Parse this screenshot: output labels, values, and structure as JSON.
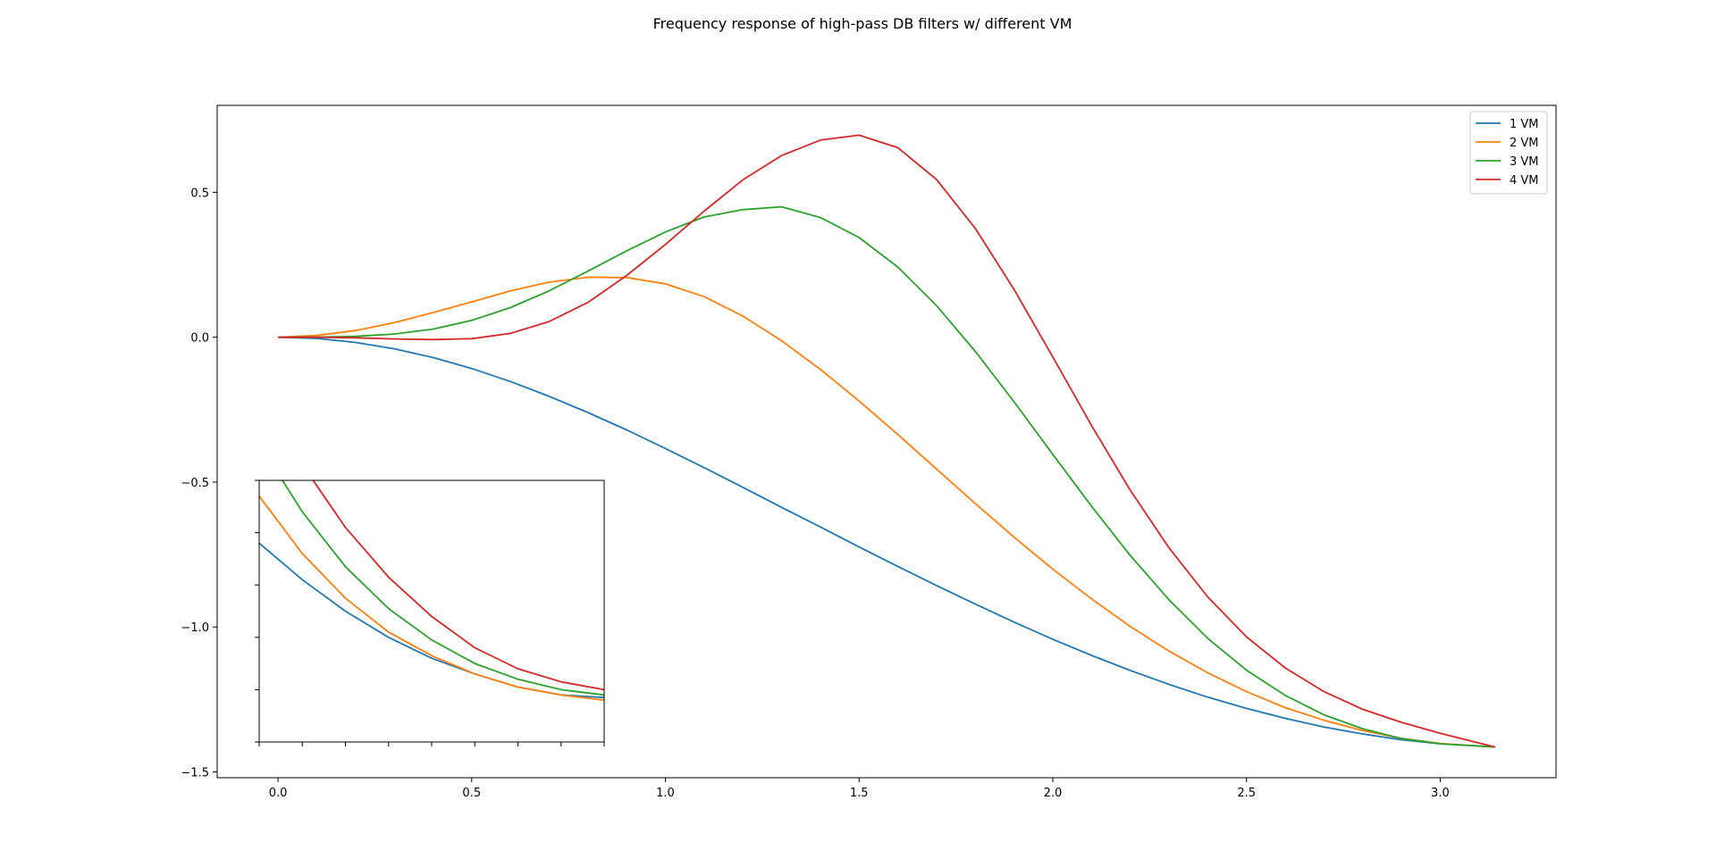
{
  "chart_data": {
    "type": "line",
    "title": "Frequency response of high-pass DB filters w/ different VM",
    "xlabel": "",
    "ylabel": "",
    "xlim": [
      -0.157,
      3.299
    ],
    "ylim": [
      -1.52,
      0.8
    ],
    "xticks": [
      0.0,
      0.5,
      1.0,
      1.5,
      2.0,
      2.5,
      3.0
    ],
    "xtick_labels": [
      "0.0",
      "0.5",
      "1.0",
      "1.5",
      "2.0",
      "2.5",
      "3.0"
    ],
    "yticks": [
      0.5,
      0.0,
      -0.5,
      -1.0,
      -1.5
    ],
    "ytick_labels": [
      "0.5",
      "0.0",
      "−0.5",
      "−1.0",
      "−1.5"
    ],
    "grid": false,
    "legend_position": "top-right",
    "x": [
      0.0,
      0.1,
      0.2,
      0.3,
      0.4,
      0.5,
      0.6,
      0.7,
      0.8,
      0.9,
      1.0,
      1.1,
      1.2,
      1.3,
      1.4,
      1.5,
      1.6,
      1.7,
      1.8,
      1.9,
      2.0,
      2.1,
      2.2,
      2.3,
      2.4,
      2.5,
      2.6,
      2.7,
      2.8,
      2.9,
      3.0,
      3.1416
    ],
    "series": [
      {
        "name": "1 VM",
        "color": "#1f77b4",
        "values": [
          0.0,
          -0.004,
          -0.018,
          -0.04,
          -0.07,
          -0.108,
          -0.153,
          -0.204,
          -0.26,
          -0.32,
          -0.384,
          -0.45,
          -0.518,
          -0.587,
          -0.655,
          -0.724,
          -0.791,
          -0.857,
          -0.921,
          -0.983,
          -1.042,
          -1.098,
          -1.15,
          -1.198,
          -1.242,
          -1.281,
          -1.315,
          -1.345,
          -1.369,
          -1.389,
          -1.403,
          -1.414
        ]
      },
      {
        "name": "2 VM",
        "color": "#ff7f0e",
        "values": [
          0.0,
          0.006,
          0.023,
          0.05,
          0.085,
          0.122,
          0.16,
          0.19,
          0.207,
          0.206,
          0.184,
          0.14,
          0.073,
          -0.012,
          -0.111,
          -0.22,
          -0.336,
          -0.455,
          -0.574,
          -0.69,
          -0.8,
          -0.903,
          -0.998,
          -1.083,
          -1.158,
          -1.223,
          -1.278,
          -1.322,
          -1.357,
          -1.384,
          -1.402,
          -1.414
        ]
      },
      {
        "name": "3 VM",
        "color": "#2ca02c",
        "values": [
          0.0,
          0.0,
          0.003,
          0.011,
          0.028,
          0.058,
          0.102,
          0.16,
          0.228,
          0.298,
          0.363,
          0.415,
          0.44,
          0.45,
          0.413,
          0.344,
          0.242,
          0.109,
          -0.049,
          -0.223,
          -0.404,
          -0.583,
          -0.753,
          -0.906,
          -1.039,
          -1.149,
          -1.236,
          -1.303,
          -1.351,
          -1.385,
          -1.403,
          -1.414
        ]
      },
      {
        "name": "4 VM",
        "color": "#d62728",
        "values": [
          0.0,
          0.0,
          -0.002,
          -0.006,
          -0.008,
          -0.005,
          0.013,
          0.054,
          0.12,
          0.213,
          0.32,
          0.435,
          0.543,
          0.627,
          0.68,
          0.697,
          0.654,
          0.544,
          0.375,
          0.165,
          -0.068,
          -0.305,
          -0.528,
          -0.727,
          -0.896,
          -1.034,
          -1.141,
          -1.223,
          -1.284,
          -1.329,
          -1.367,
          -1.414
        ]
      }
    ],
    "inset": {
      "xlim": [
        0.0,
        0.8
      ],
      "ylim": [
        -1.0,
        0.0
      ],
      "xticks": [
        0.0,
        0.1,
        0.2,
        0.3,
        0.4,
        0.5,
        0.6,
        0.7,
        0.8
      ],
      "yticks": [
        0.0,
        -0.2,
        -0.4,
        -0.6,
        -0.8,
        -1.0
      ],
      "x": [
        0.0,
        0.1,
        0.2,
        0.3,
        0.4,
        0.5,
        0.6,
        0.7,
        0.8
      ],
      "series": [
        {
          "name": "1 VM",
          "color": "#1f77b4",
          "values": [
            -0.24,
            -0.38,
            -0.5,
            -0.6,
            -0.68,
            -0.74,
            -0.79,
            -0.82,
            -0.83
          ]
        },
        {
          "name": "2 VM",
          "color": "#ff7f0e",
          "values": [
            -0.06,
            -0.28,
            -0.45,
            -0.58,
            -0.67,
            -0.74,
            -0.79,
            -0.82,
            -0.84
          ]
        },
        {
          "name": "3 VM",
          "color": "#2ca02c",
          "values": [
            0.14,
            -0.12,
            -0.33,
            -0.49,
            -0.61,
            -0.7,
            -0.76,
            -0.8,
            -0.82
          ]
        },
        {
          "name": "4 VM",
          "color": "#d62728",
          "values": [
            0.35,
            0.06,
            -0.18,
            -0.37,
            -0.52,
            -0.64,
            -0.72,
            -0.77,
            -0.8
          ]
        }
      ]
    }
  }
}
